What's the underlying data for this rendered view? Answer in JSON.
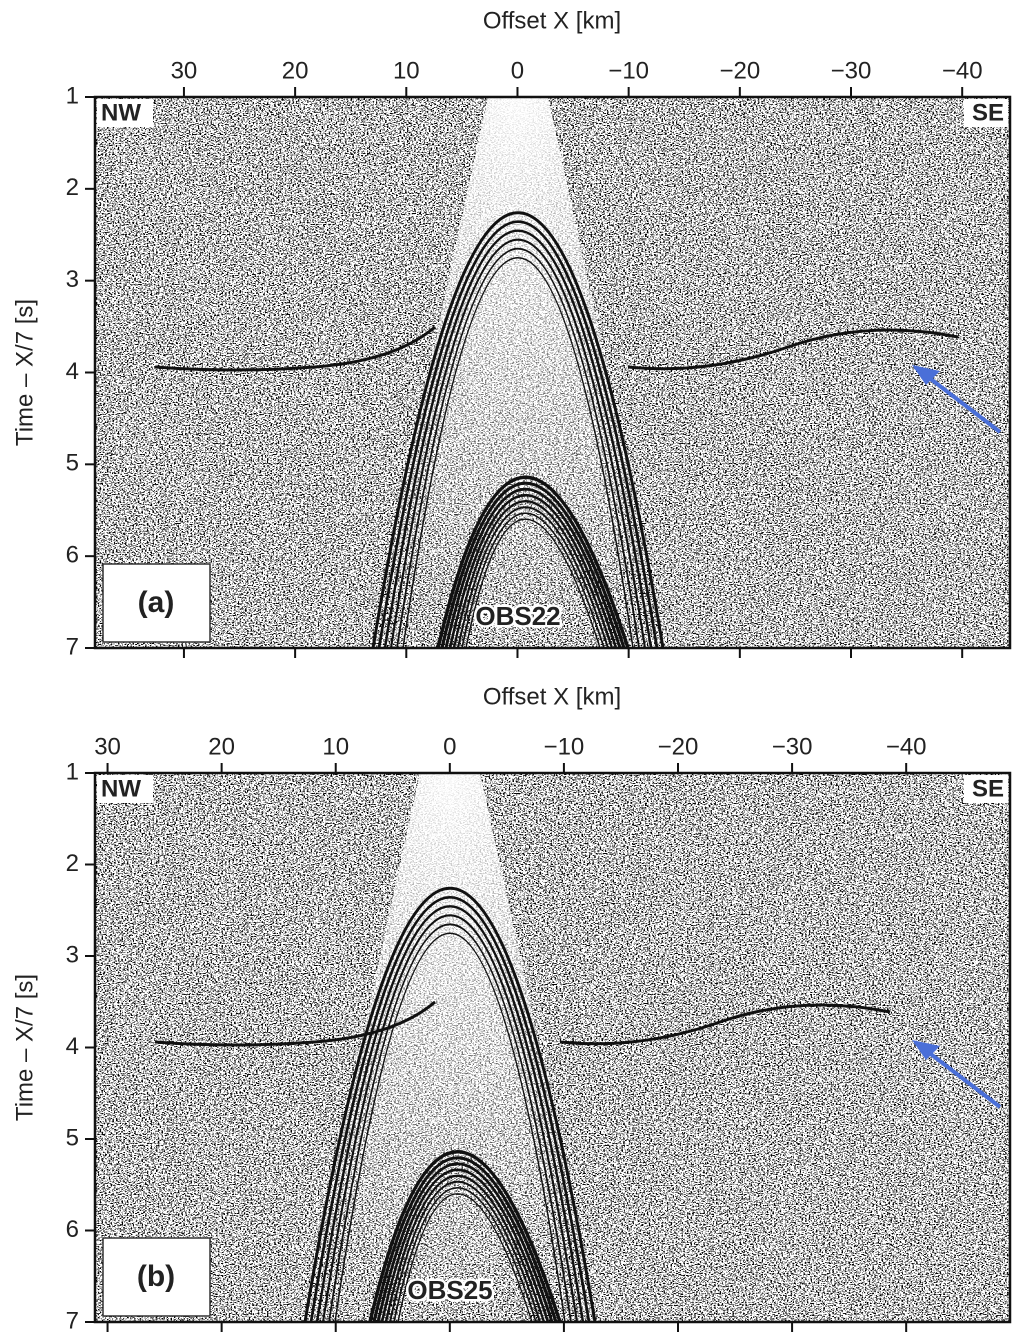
{
  "chart_data": [
    {
      "type": "seismic",
      "title": "Offset X [km]",
      "y_label": "Time – X/7 [s]",
      "xlim": [
        38,
        -44.3
      ],
      "ylim": [
        1,
        7
      ],
      "y_inverted": true,
      "xticks": [
        30,
        20,
        10,
        0,
        {
          "value": -10,
          "label": "−10"
        },
        {
          "value": -20,
          "label": "−20"
        },
        {
          "value": -30,
          "label": "−30"
        },
        {
          "value": -40,
          "label": "−40"
        }
      ],
      "yticks": [
        1,
        2,
        3,
        4,
        5,
        6,
        7
      ],
      "annotations": {
        "left": "NW",
        "right": "SE",
        "panel": "(a)",
        "station": "OBS22"
      }
    },
    {
      "type": "seismic",
      "title": "Offset X [km]",
      "y_label": "Time – X/7 [s]",
      "xlim": [
        31.1,
        -49.1
      ],
      "ylim": [
        1,
        7
      ],
      "y_inverted": true,
      "xticks": [
        30,
        20,
        10,
        0,
        {
          "value": -10,
          "label": "−10"
        },
        {
          "value": -20,
          "label": "−20"
        },
        {
          "value": -30,
          "label": "−30"
        },
        {
          "value": -40,
          "label": "−40"
        }
      ],
      "yticks": [
        1,
        2,
        3,
        4,
        5,
        6,
        7
      ],
      "annotations": {
        "left": "NW",
        "right": "SE",
        "panel": "(b)",
        "station": "OBS25"
      }
    }
  ]
}
